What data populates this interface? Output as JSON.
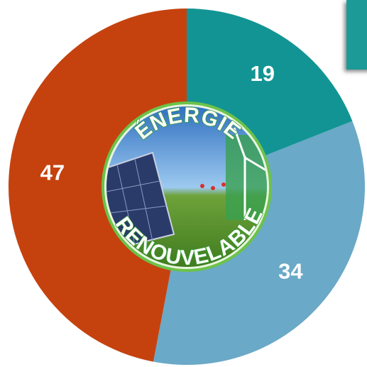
{
  "chart_data": {
    "type": "donut",
    "values": [
      19,
      34,
      47
    ],
    "colors": [
      "#139494",
      "#6aa9c7",
      "#c5420f"
    ],
    "annotations": [
      "ÉNERGIE",
      "RENOUVELABLE"
    ]
  }
}
